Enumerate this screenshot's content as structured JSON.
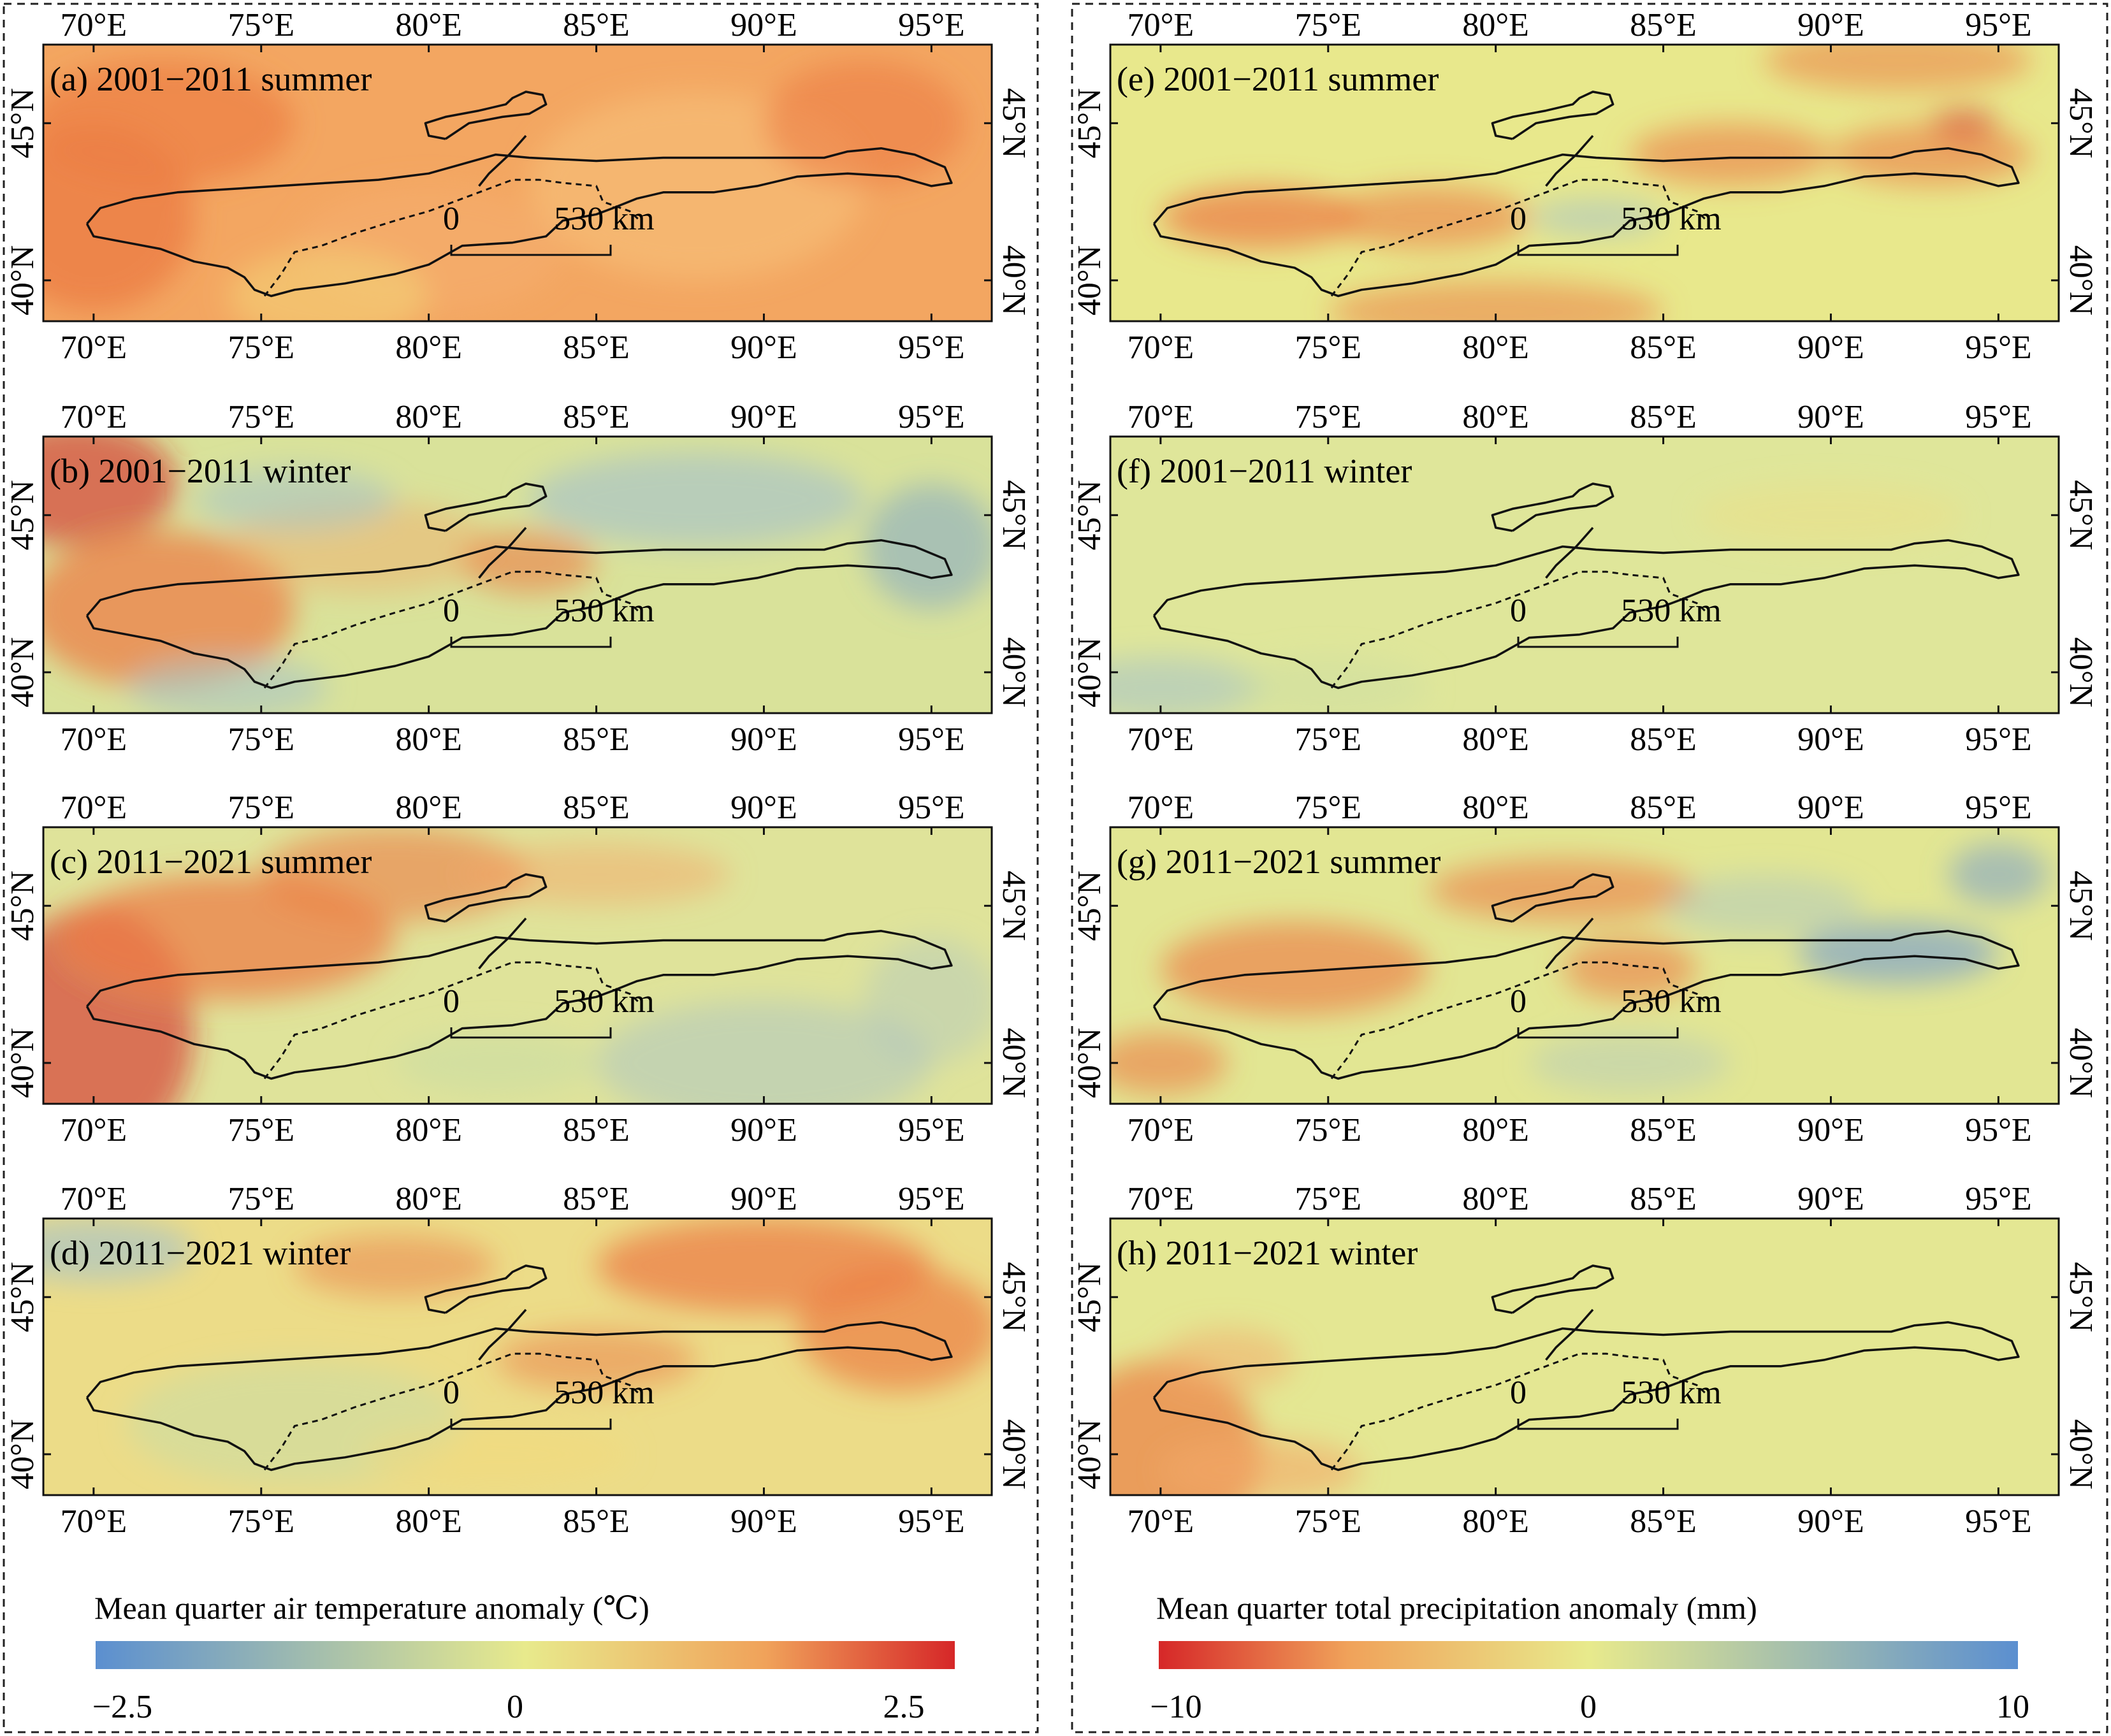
{
  "colors": {
    "temp_neg": "#5b8fd0",
    "temp_mid": "#e8ea8c",
    "temp_pos": "#d62728",
    "precip_neg": "#d62728",
    "precip_mid": "#e8ea8c",
    "precip_pos": "#5b8fd0"
  },
  "axes": {
    "lon_ticks": [
      "70°E",
      "75°E",
      "80°E",
      "85°E",
      "90°E",
      "95°E"
    ],
    "lat_ticks": [
      "45°N",
      "40°N"
    ]
  },
  "scale_bar": {
    "start": "0",
    "end": "530 km"
  },
  "panels": [
    {
      "label": "(a) 2001−2011 summer",
      "variable": "temperature",
      "pattern": "warm_strong"
    },
    {
      "label": "(b) 2001−2011 winter",
      "variable": "temperature",
      "pattern": "mixed_cool_north"
    },
    {
      "label": "(c) 2011−2021 summer",
      "variable": "temperature",
      "pattern": "warm_west"
    },
    {
      "label": "(d) 2011−2021 winter",
      "variable": "temperature",
      "pattern": "warm_east"
    },
    {
      "label": "(e) 2001−2011 summer",
      "variable": "precipitation",
      "pattern": "dry_spots"
    },
    {
      "label": "(f) 2001−2011 winter",
      "variable": "precipitation",
      "pattern": "neutral"
    },
    {
      "label": "(g) 2011−2021 summer",
      "variable": "precipitation",
      "pattern": "mixed"
    },
    {
      "label": "(h) 2011−2021 winter",
      "variable": "precipitation",
      "pattern": "neutral_dry_sw"
    }
  ],
  "colorbars": [
    {
      "title": "Mean quarter air temperature anomaly (℃)",
      "min": "−2.5",
      "mid": "0",
      "max": "2.5"
    },
    {
      "title": "Mean quarter total precipitation anomaly (mm)",
      "min": "−10",
      "mid": "0",
      "max": "10"
    }
  ]
}
